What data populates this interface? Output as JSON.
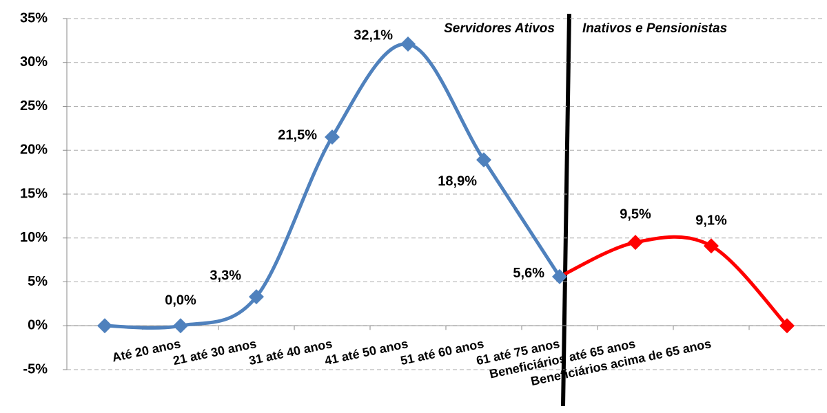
{
  "chart_data": {
    "type": "line",
    "categories": [
      null,
      "Até 20 anos",
      "21 até 30 anos",
      "31 até 40 anos",
      "41 até 50 anos",
      "51 até 60 anos",
      "61 até 75 anos",
      "Beneficiários até 65 anos",
      "Beneficiários acima de 65 anos",
      null
    ],
    "series": [
      {
        "color": "#4f81bd",
        "values": [
          0,
          0.0,
          3.3,
          21.5,
          32.1,
          18.9,
          5.6,
          null,
          null,
          null
        ],
        "value_labels": [
          null,
          "0,0%",
          "3,3%",
          "21,5%",
          "32,1%",
          "18,9%",
          "5,6%",
          null,
          null,
          null
        ]
      },
      {
        "color": "#ff0000",
        "values": [
          null,
          null,
          null,
          null,
          null,
          null,
          5.6,
          9.5,
          9.1,
          0
        ],
        "value_labels": [
          null,
          null,
          null,
          null,
          null,
          null,
          null,
          "9,5%",
          "9,1%",
          null
        ]
      }
    ],
    "annotations": [
      "Servidores Ativos",
      "Inativos e Pensionistas"
    ],
    "ylim": [
      -5,
      35
    ],
    "yticks": [
      {
        "value": -5,
        "label": "-5%"
      },
      {
        "value": 0,
        "label": "0%"
      },
      {
        "value": 5,
        "label": "5%"
      },
      {
        "value": 10,
        "label": "10%"
      },
      {
        "value": 15,
        "label": "15%"
      },
      {
        "value": 20,
        "label": "20%"
      },
      {
        "value": 25,
        "label": "25%"
      },
      {
        "value": 30,
        "label": "30%"
      },
      {
        "value": 35,
        "label": "35%"
      }
    ],
    "grid": true,
    "smooth": true
  }
}
